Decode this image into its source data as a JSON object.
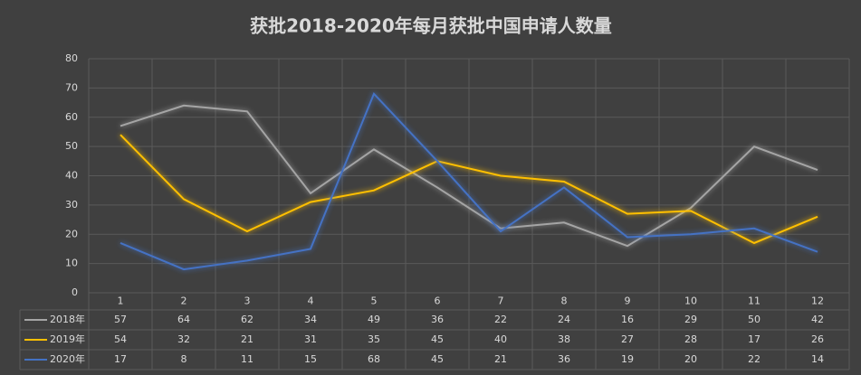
{
  "chart_data": {
    "type": "line",
    "title": "获批2018-2020年每月获批中国申请人数量",
    "categories": [
      "1",
      "2",
      "3",
      "4",
      "5",
      "6",
      "7",
      "8",
      "9",
      "10",
      "11",
      "12"
    ],
    "series": [
      {
        "name": "2018年",
        "color": "#a5a5a5",
        "values": [
          57,
          64,
          62,
          34,
          49,
          36,
          22,
          24,
          16,
          29,
          50,
          42
        ]
      },
      {
        "name": "2019年",
        "color": "#ffc000",
        "values": [
          54,
          32,
          21,
          31,
          35,
          45,
          40,
          38,
          27,
          28,
          17,
          26
        ]
      },
      {
        "name": "2020年",
        "color": "#4472c4",
        "values": [
          17,
          8,
          11,
          15,
          68,
          45,
          21,
          36,
          19,
          20,
          22,
          14
        ]
      }
    ],
    "ylim": [
      0,
      80
    ],
    "yticks": [
      0,
      10,
      20,
      30,
      40,
      50,
      60,
      70,
      80
    ],
    "grid": true
  }
}
